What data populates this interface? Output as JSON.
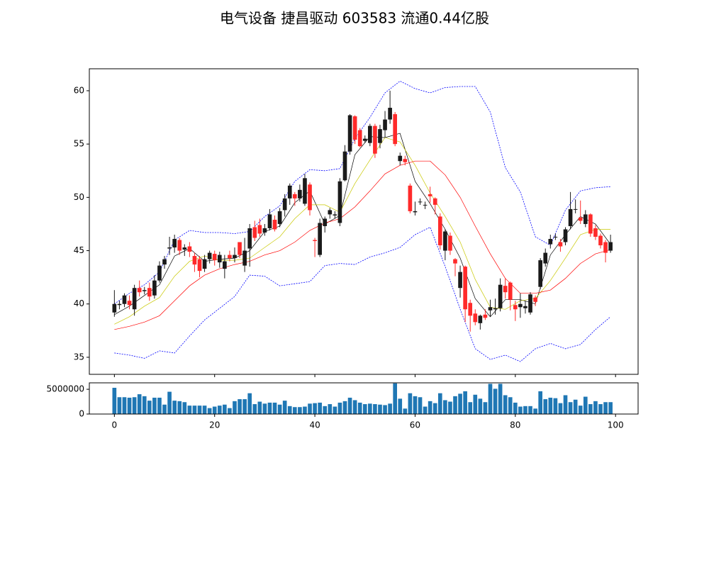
{
  "title": "电气设备 捷昌驱动 603583 流通0.44亿股",
  "chart_data": [
    {
      "type": "candlestick",
      "x": [
        0,
        1,
        2,
        3,
        4,
        5,
        6,
        7,
        8,
        9,
        10,
        11,
        12,
        13,
        14,
        15,
        16,
        17,
        18,
        19,
        20,
        21,
        22,
        23,
        24,
        25,
        26,
        27,
        28,
        29,
        30,
        31,
        32,
        33,
        34,
        35,
        36,
        37,
        38,
        39,
        40,
        41,
        42,
        43,
        44,
        45,
        46,
        47,
        48,
        49,
        50,
        51,
        52,
        53,
        54,
        55,
        56,
        57,
        58,
        59,
        60,
        61,
        62,
        63,
        64,
        65,
        66,
        67,
        68,
        69,
        70,
        71,
        72,
        73,
        74,
        75,
        76,
        77,
        78,
        79,
        80,
        81,
        82,
        83,
        84,
        85,
        86,
        87,
        88,
        89,
        90,
        91,
        92,
        93,
        94,
        95,
        96,
        97,
        98,
        99
      ],
      "open": [
        39.2,
        39.9,
        40.0,
        40.3,
        39.5,
        41.5,
        41.2,
        41.5,
        40.8,
        42.2,
        43.7,
        45.2,
        45.3,
        46.0,
        45.1,
        45.4,
        44.5,
        44.2,
        43.3,
        44.2,
        44.7,
        43.9,
        43.3,
        44.6,
        44.3,
        45.8,
        43.6,
        45.2,
        47.2,
        47.4,
        46.7,
        47.1,
        47.9,
        47.5,
        48.8,
        49.9,
        50.3,
        49.9,
        49.4,
        51.2,
        46.0,
        44.6,
        47.3,
        48.4,
        48.3,
        47.6,
        51.6,
        54.3,
        57.6,
        56.3,
        55.3,
        55.1,
        56.7,
        55.1,
        56.3,
        57.3,
        57.8,
        53.4,
        53.6,
        51.1,
        48.6,
        49.6,
        49.3,
        50.3,
        49.9,
        48.2,
        45.0,
        46.4,
        44.2,
        41.5,
        43.5,
        40.1,
        39.1,
        38.2,
        39.0,
        39.4,
        39.5,
        39.6,
        41.7,
        42.0,
        39.9,
        39.7,
        39.6,
        39.2,
        40.6,
        41.6,
        43.8,
        45.6,
        46.3,
        45.8,
        45.8,
        47.3,
        48.9,
        48.1,
        47.5,
        48.4,
        47.1,
        46.4,
        45.8,
        45.0
      ],
      "high": [
        41.3,
        40.3,
        41.0,
        40.8,
        41.8,
        42.2,
        41.6,
        42.0,
        42.7,
        44.0,
        44.5,
        46.3,
        46.5,
        46.2,
        45.6,
        45.8,
        44.8,
        44.5,
        44.6,
        45.0,
        45.0,
        44.9,
        44.6,
        45.0,
        45.3,
        45.8,
        46.2,
        47.5,
        47.8,
        48.0,
        47.5,
        48.9,
        48.3,
        49.0,
        50.3,
        51.3,
        50.5,
        51.2,
        52.2,
        51.4,
        46.2,
        48.0,
        48.2,
        49.0,
        48.7,
        51.8,
        54.9,
        57.8,
        57.7,
        56.5,
        55.8,
        56.9,
        56.9,
        56.8,
        58.1,
        60.0,
        58.0,
        54.2,
        53.9,
        51.3,
        49.6,
        49.9,
        49.6,
        51.0,
        50.0,
        48.5,
        47.0,
        46.7,
        44.3,
        43.6,
        43.6,
        40.4,
        39.5,
        39.0,
        39.5,
        40.4,
        40.5,
        42.4,
        42.4,
        42.1,
        40.3,
        41.0,
        40.3,
        41.1,
        40.8,
        44.3,
        45.2,
        46.5,
        46.6,
        46.1,
        47.2,
        50.5,
        49.8,
        49.7,
        48.8,
        48.5,
        47.4,
        46.6,
        46.0,
        46.5
      ],
      "low": [
        38.8,
        39.5,
        39.7,
        39.5,
        38.9,
        40.7,
        40.9,
        40.3,
        40.5,
        42.0,
        43.3,
        44.6,
        44.8,
        44.6,
        44.5,
        44.4,
        43.0,
        42.5,
        43.0,
        43.8,
        43.6,
        43.4,
        42.4,
        44.0,
        43.9,
        44.3,
        43.0,
        43.5,
        45.9,
        46.3,
        46.4,
        46.9,
        46.8,
        47.2,
        48.2,
        49.3,
        49.2,
        49.6,
        49.2,
        48.3,
        44.4,
        44.4,
        46.7,
        48.0,
        48.0,
        47.3,
        51.5,
        54.0,
        55.0,
        54.7,
        55.1,
        54.8,
        53.7,
        54.6,
        55.6,
        56.9,
        54.8,
        53.0,
        53.0,
        48.5,
        48.3,
        49.3,
        48.9,
        49.5,
        48.4,
        45.1,
        44.1,
        44.6,
        42.6,
        40.6,
        38.3,
        37.4,
        38.0,
        37.6,
        38.5,
        38.8,
        39.0,
        39.3,
        40.5,
        39.4,
        38.4,
        38.7,
        39.1,
        39.0,
        39.8,
        41.4,
        43.5,
        45.2,
        46.0,
        44.9,
        45.5,
        47.0,
        48.5,
        47.5,
        47.2,
        46.3,
        46.0,
        45.2,
        43.9,
        44.8
      ],
      "close": [
        40.0,
        40.0,
        40.8,
        39.9,
        41.5,
        41.1,
        41.3,
        40.7,
        42.2,
        43.6,
        44.2,
        45.3,
        46.1,
        45.0,
        45.3,
        44.9,
        43.7,
        43.1,
        44.2,
        44.8,
        44.1,
        44.6,
        44.0,
        44.3,
        44.6,
        44.6,
        45.0,
        47.1,
        46.2,
        46.6,
        47.1,
        48.4,
        47.0,
        48.7,
        49.9,
        51.1,
        49.9,
        50.7,
        51.8,
        48.8,
        45.9,
        47.6,
        48.0,
        48.8,
        48.4,
        51.5,
        54.3,
        57.7,
        55.4,
        54.8,
        55.5,
        56.7,
        54.1,
        56.4,
        57.3,
        58.4,
        55.0,
        53.9,
        53.3,
        48.7,
        48.7,
        49.6,
        49.3,
        50.1,
        49.3,
        45.5,
        46.8,
        45.0,
        43.8,
        43.0,
        39.5,
        38.9,
        38.3,
        38.9,
        38.7,
        39.7,
        39.6,
        41.8,
        41.1,
        40.4,
        39.5,
        40.0,
        39.8,
        40.9,
        40.2,
        44.1,
        44.8,
        46.1,
        46.3,
        45.4,
        47.0,
        48.9,
        48.9,
        47.8,
        48.4,
        46.6,
        46.3,
        45.5,
        44.8,
        45.8
      ],
      "up_color": "#1a1a1a",
      "down_color": "#ff2a2a",
      "lines": {
        "x": [
          0,
          3,
          6,
          9,
          12,
          15,
          18,
          21,
          24,
          27,
          30,
          33,
          36,
          39,
          42,
          45,
          48,
          51,
          54,
          57,
          60,
          63,
          66,
          69,
          72,
          75,
          78,
          81,
          84,
          87,
          90,
          93,
          96,
          99
        ],
        "series": [
          {
            "color": "#000000",
            "dashed": false,
            "values": [
              39.0,
              39.8,
              40.8,
              41.8,
              44.5,
              45.2,
              44.0,
              44.2,
              44.3,
              45.0,
              46.8,
              47.3,
              49.5,
              50.6,
              47.5,
              48.3,
              54.0,
              55.7,
              55.6,
              56.0,
              51.5,
              49.4,
              47.0,
              44.3,
              40.5,
              38.8,
              40.4,
              40.4,
              40.0,
              44.6,
              46.5,
              48.2,
              47.5,
              45.6
            ]
          },
          {
            "color": "#c8c800",
            "dashed": false,
            "values": [
              38.1,
              38.8,
              39.8,
              40.6,
              42.6,
              44.0,
              44.5,
              44.1,
              44.1,
              44.3,
              45.3,
              46.3,
              48.0,
              49.3,
              49.3,
              48.6,
              51.3,
              53.5,
              55.6,
              55.2,
              53.0,
              50.4,
              48.2,
              45.8,
              42.3,
              39.7,
              39.5,
              40.3,
              40.5,
              42.2,
              44.3,
              46.5,
              47.0,
              47.0
            ]
          },
          {
            "color": "#ff0000",
            "dashed": false,
            "values": [
              37.6,
              37.9,
              38.3,
              38.9,
              40.3,
              41.7,
              42.7,
              43.3,
              43.7,
              44.0,
              44.6,
              45.0,
              45.8,
              46.9,
              47.6,
              48.0,
              49.1,
              50.6,
              52.2,
              53.0,
              53.4,
              53.4,
              52.1,
              50.0,
              47.3,
              44.7,
              42.4,
              41.0,
              41.0,
              41.3,
              42.4,
              43.8,
              44.7,
              45.1
            ]
          },
          {
            "color": "#0000ff",
            "dashed": true,
            "values": [
              40.0,
              41.0,
              41.8,
              43.0,
              46.0,
              46.9,
              46.7,
              46.7,
              46.6,
              46.8,
              48.2,
              49.2,
              51.5,
              52.6,
              52.5,
              52.7,
              55.5,
              57.5,
              59.8,
              60.9,
              60.2,
              59.8,
              60.3,
              60.4,
              60.4,
              58.0,
              52.8,
              50.5,
              46.3,
              45.5,
              48.8,
              50.6,
              50.9,
              51.0
            ]
          },
          {
            "color": "#0000ff",
            "dashed": true,
            "values": [
              35.4,
              35.2,
              34.9,
              35.6,
              35.4,
              37.0,
              38.5,
              39.6,
              40.7,
              42.7,
              42.6,
              41.7,
              41.9,
              42.1,
              43.6,
              43.8,
              43.7,
              44.4,
              44.8,
              45.3,
              46.5,
              47.2,
              43.5,
              39.5,
              35.8,
              34.8,
              35.2,
              34.6,
              35.8,
              36.3,
              35.8,
              36.2,
              37.6,
              38.8
            ]
          }
        ]
      },
      "xlim": [
        -5,
        104.5
      ],
      "ylim": [
        33.4,
        62.06
      ],
      "yticks": [
        35,
        40,
        45,
        50,
        55,
        60
      ]
    },
    {
      "type": "bar",
      "color": "#1f77b4",
      "values": [
        5300000,
        3400000,
        3400000,
        3300000,
        3400000,
        4000000,
        3600000,
        2700000,
        3300000,
        3300000,
        1900000,
        4500000,
        2700000,
        2600000,
        2400000,
        1700000,
        1700000,
        1700000,
        1700000,
        1200000,
        1500000,
        1700000,
        1900000,
        1200000,
        2600000,
        3000000,
        3000000,
        4200000,
        2000000,
        2500000,
        2100000,
        2300000,
        2300000,
        1900000,
        2700000,
        1600000,
        1400000,
        1400000,
        1500000,
        2100000,
        2200000,
        2300000,
        1600000,
        2000000,
        1500000,
        2300000,
        2600000,
        3300000,
        2800000,
        2300000,
        2000000,
        2100000,
        2000000,
        1900000,
        1800000,
        2100000,
        6200000,
        3100000,
        1100000,
        4200000,
        3600000,
        3400000,
        1500000,
        2600000,
        2200000,
        4200000,
        2800000,
        2500000,
        3600000,
        4100000,
        4600000,
        2400000,
        3900000,
        3100000,
        2400000,
        6100000,
        5100000,
        6100000,
        3800000,
        3400000,
        2300000,
        1500000,
        1600000,
        1600000,
        1100000,
        4600000,
        3000000,
        3300000,
        3200000,
        2200000,
        3800000,
        2400000,
        2900000,
        1700000,
        3500000,
        2000000,
        2600000,
        2000000,
        2400000,
        2400000
      ],
      "xlim": [
        -5,
        104.5
      ],
      "xticks": [
        0,
        20,
        40,
        60,
        80,
        100
      ],
      "ylim": [
        0,
        6300000
      ],
      "yticks": [
        0,
        5000000
      ]
    }
  ]
}
